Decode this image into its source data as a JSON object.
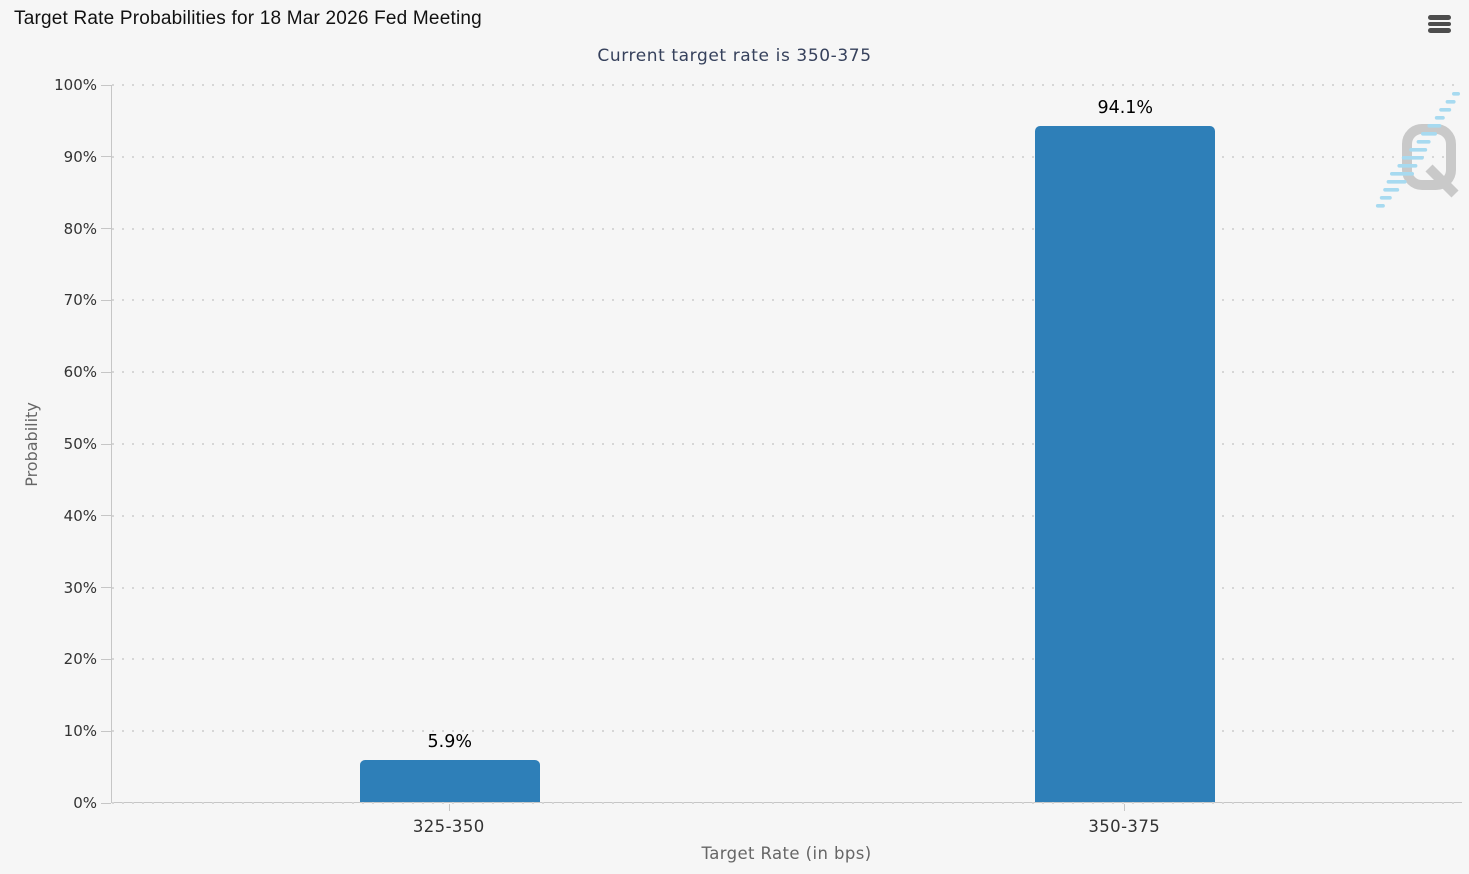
{
  "chart_data": {
    "type": "bar",
    "title": "Target Rate Probabilities for 18 Mar 2026 Fed Meeting",
    "subtitle": "Current target rate is 350-375",
    "categories": [
      "325-350",
      "350-375"
    ],
    "values": [
      5.9,
      94.1
    ],
    "value_labels": [
      "5.9%",
      "94.1%"
    ],
    "xlabel": "Target Rate (in bps)",
    "ylabel": "Probability",
    "ylim": [
      0,
      100
    ],
    "y_ticks": [
      "0%",
      "10%",
      "20%",
      "30%",
      "40%",
      "50%",
      "60%",
      "70%",
      "80%",
      "90%",
      "100%"
    ],
    "grid": "dotted-horizontal",
    "legend_position": "none",
    "bar_color": "#2E7FB8"
  },
  "header": {
    "menu_icon": "hamburger-icon"
  },
  "watermark": {
    "icon": "quikstrike-q-logo"
  },
  "colors": {
    "background": "#f6f6f6",
    "bar": "#2E7FB8",
    "title": "#111111",
    "subtitle": "#36415C",
    "axis_line": "#c6c6c6",
    "grid_dot": "#d6d6d6",
    "label": "#333333",
    "axis_title": "#666666",
    "data_label": "#000000",
    "menu_icon": "#4d4d4d",
    "watermark_q": "#c9c9c9",
    "watermark_dash": "#a7daf0"
  }
}
